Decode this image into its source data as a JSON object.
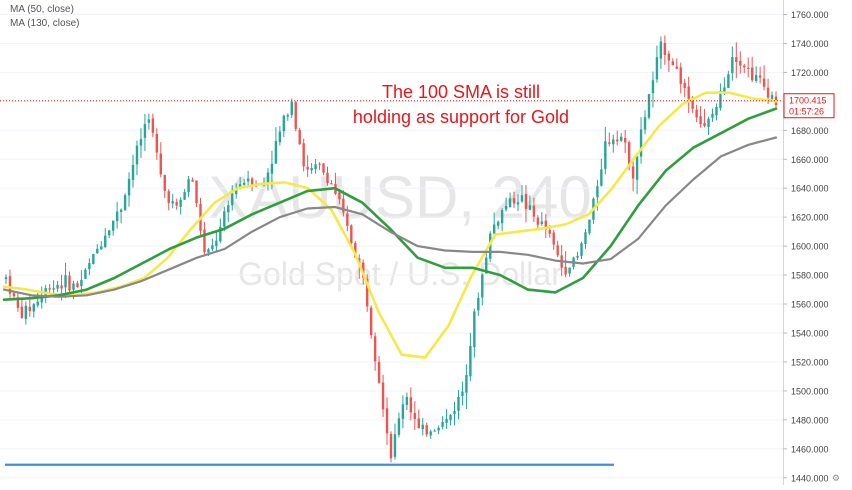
{
  "chart_data": {
    "type": "candlestick",
    "symbol_watermark": "XAUUSD, 240",
    "description_watermark": "Gold Spot / U.S. Dollar",
    "legend": [
      {
        "label": "MA (50, close)"
      },
      {
        "label": "MA (130, close)"
      }
    ],
    "annotation": [
      "The 100 SMA is still",
      "holding as support for Gold"
    ],
    "y_axis": {
      "ylim": [
        1435,
        1770
      ],
      "ticks": [
        1440,
        1460,
        1480,
        1500,
        1520,
        1540,
        1560,
        1580,
        1600,
        1620,
        1640,
        1660,
        1680,
        1700,
        1720,
        1740,
        1760
      ],
      "position": "right"
    },
    "last_price": {
      "value": "1700.415",
      "countdown": "01:57:26"
    },
    "support_line": {
      "value": 1449
    },
    "ohlc_path": [
      1578,
      1552,
      1560,
      1572,
      1575,
      1572,
      1590,
      1610,
      1625,
      1660,
      1692,
      1640,
      1625,
      1650,
      1590,
      1610,
      1640,
      1648,
      1640,
      1672,
      1703,
      1650,
      1655,
      1640,
      1610,
      1580,
      1520,
      1455,
      1500,
      1470,
      1475,
      1480,
      1500,
      1560,
      1610,
      1628,
      1635,
      1620,
      1610,
      1585,
      1590,
      1620,
      1670,
      1680,
      1650,
      1700,
      1740,
      1722,
      1700,
      1680,
      1700,
      1735,
      1722,
      1712,
      1700
    ],
    "candle_count": 195,
    "moving_averages": [
      {
        "color": "#f5e94a",
        "values": [
          1572,
          1570,
          1567,
          1566,
          1568,
          1572,
          1578,
          1592,
          1612,
          1630,
          1640,
          1643,
          1644,
          1640,
          1625,
          1595,
          1555,
          1525,
          1523,
          1545,
          1580,
          1608,
          1610,
          1612,
          1615,
          1622,
          1640,
          1662,
          1683,
          1698,
          1706,
          1706,
          1702,
          1700
        ]
      },
      {
        "color": "#2e9e3f",
        "values": [
          1563,
          1564,
          1566,
          1570,
          1578,
          1588,
          1598,
          1606,
          1612,
          1622,
          1630,
          1638,
          1640,
          1630,
          1612,
          1592,
          1585,
          1585,
          1580,
          1570,
          1568,
          1578,
          1600,
          1628,
          1652,
          1668,
          1678,
          1688,
          1695
        ]
      },
      {
        "color": "#888888",
        "values": [
          1570,
          1566,
          1565,
          1566,
          1570,
          1576,
          1584,
          1592,
          1598,
          1610,
          1620,
          1626,
          1627,
          1622,
          1610,
          1600,
          1597,
          1596,
          1596,
          1594,
          1590,
          1588,
          1591,
          1605,
          1628,
          1646,
          1662,
          1670,
          1675
        ]
      }
    ],
    "colors": {
      "up": "#26a69a",
      "down": "#ef5350",
      "support_line": "#3d8fe0",
      "last_price": "#e8161b"
    }
  }
}
